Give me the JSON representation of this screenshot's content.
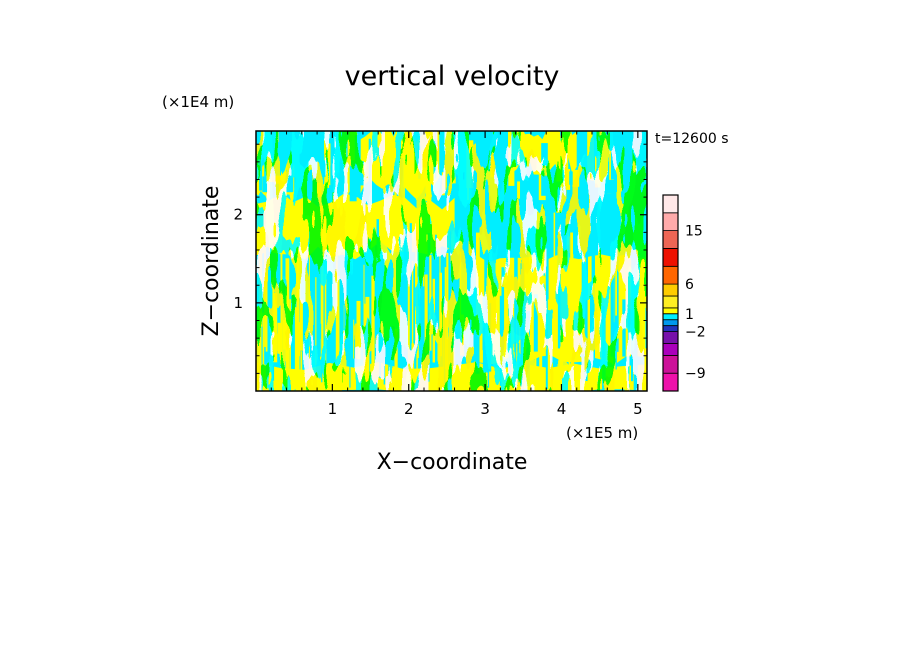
{
  "chart_data": {
    "type": "heatmap",
    "title": "vertical velocity",
    "xlabel": "X−coordinate",
    "ylabel": "Z−coordinate",
    "x_unit": "(×1E5 m)",
    "y_unit": "(×1E4 m)",
    "time_label": "t=12600 s",
    "xlim": [
      0,
      5.12
    ],
    "ylim": [
      0,
      2.95
    ],
    "x_ticks": [
      {
        "value": 1,
        "label": "1"
      },
      {
        "value": 2,
        "label": "2"
      },
      {
        "value": 3,
        "label": "3"
      },
      {
        "value": 4,
        "label": "4"
      },
      {
        "value": 5,
        "label": "5"
      }
    ],
    "y_ticks": [
      {
        "value": 1,
        "label": "1"
      },
      {
        "value": 2,
        "label": "2"
      }
    ],
    "colorbar": {
      "levels": [
        -12,
        -9,
        -6,
        -4,
        -2,
        -1,
        0,
        1,
        2,
        4,
        6,
        9,
        12,
        15,
        18,
        21
      ],
      "colors": [
        "#ee11aa",
        "#cc1199",
        "#aa00bb",
        "#7711aa",
        "#2233bb",
        "#0099ee",
        "#00eeff",
        "#ffff00",
        "#ffee22",
        "#ffcc00",
        "#ff6600",
        "#ee1100",
        "#ee6655",
        "#ffaaaa",
        "#ffe8e8"
      ],
      "labels": [
        {
          "value": -9,
          "label": "−9"
        },
        {
          "value": -2,
          "label": "−2"
        },
        {
          "value": 1,
          "label": "1"
        },
        {
          "value": 6,
          "label": "6"
        },
        {
          "value": 15,
          "label": "15"
        }
      ]
    },
    "regions": [
      {
        "z_range": [
          0,
          0.4
        ],
        "pattern": "fine alternating updrafts/downdrafts (yellow/cyan)"
      },
      {
        "z_range": [
          0.4,
          1.5
        ],
        "pattern": "mostly cyan (weak downward) for x<2.9, mostly yellow (weak upward) for x>2.9"
      },
      {
        "z_range": [
          1.6,
          2.2
        ],
        "pattern": "yellow band for x<2.6, cyan band for x>2.7"
      },
      {
        "z_range": [
          2.2,
          2.95
        ],
        "pattern": "mixed yellow/cyan plumes"
      }
    ]
  }
}
